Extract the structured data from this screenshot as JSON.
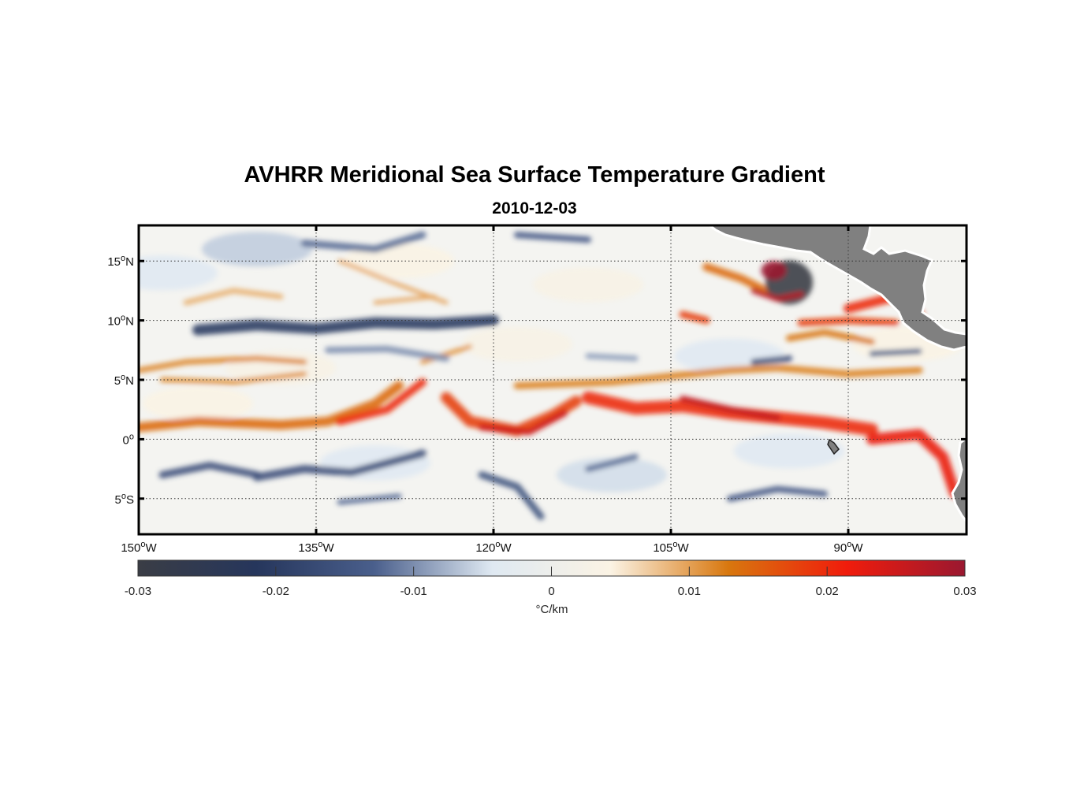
{
  "figure": {
    "title": "AVHRR Meridional Sea Surface Temperature Gradient",
    "subtitle": "2010-12-03"
  },
  "chart_data": {
    "type": "heatmap",
    "title": "AVHRR Meridional Sea Surface Temperature Gradient",
    "subtitle": "2010-12-03",
    "variable": "meridional SST gradient",
    "units": "°C/km",
    "xlim": [
      -150,
      -80
    ],
    "ylim": [
      -8,
      18
    ],
    "x_ticks": [
      {
        "value": -150,
        "deg": "150",
        "hemi": "W"
      },
      {
        "value": -135,
        "deg": "135",
        "hemi": "W"
      },
      {
        "value": -120,
        "deg": "120",
        "hemi": "W"
      },
      {
        "value": -105,
        "deg": "105",
        "hemi": "W"
      },
      {
        "value": -90,
        "deg": "90",
        "hemi": "W"
      }
    ],
    "y_ticks": [
      {
        "value": 15,
        "deg": "15",
        "hemi": "N"
      },
      {
        "value": 10,
        "deg": "10",
        "hemi": "N"
      },
      {
        "value": 5,
        "deg": "5",
        "hemi": "N"
      },
      {
        "value": 0,
        "deg": "0",
        "hemi": ""
      },
      {
        "value": -5,
        "deg": "5",
        "hemi": "S"
      }
    ],
    "grid": true,
    "grid_style": "dotted",
    "land_color": "#808080",
    "colorbar": {
      "orientation": "horizontal",
      "range": [
        -0.03,
        0.03
      ],
      "ticks": [
        -0.03,
        -0.02,
        -0.01,
        0,
        0.01,
        0.02,
        0.03
      ],
      "tick_labels": [
        "-0.03",
        "-0.02",
        "-0.01",
        "0",
        "0.01",
        "0.02",
        "0.03"
      ],
      "label": "°C/km",
      "colors": [
        "#3a3d45",
        "#26365c",
        "#4a5f8c",
        "#dfe9f2",
        "#fbf3e4",
        "#d8770e",
        "#f01c0c",
        "#9a1830"
      ]
    },
    "features": [
      {
        "name": "equatorial front",
        "sign": "positive",
        "lat_range": [
          0,
          5
        ],
        "lon_range": [
          -150,
          -80
        ],
        "peak_value": 0.025
      },
      {
        "name": "Gulf of Tehuantepec eddy",
        "sign": "mixed",
        "lat": 13.5,
        "lon": -95,
        "min_value": -0.03,
        "max_value": 0.03
      },
      {
        "name": "negative band near 10N",
        "sign": "negative",
        "lat": 9.5,
        "lon_range": [
          -145,
          -120
        ],
        "peak_value": -0.02
      }
    ]
  }
}
